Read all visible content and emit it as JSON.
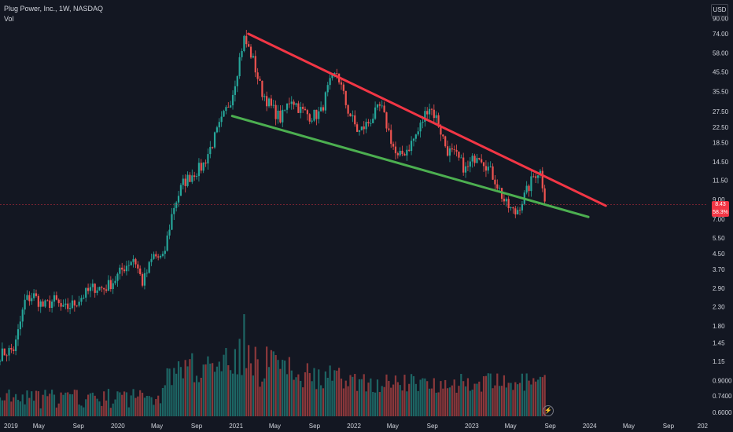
{
  "header": {
    "title": "Plug Power, Inc., 1W, NASDAQ",
    "indicator": "Vol"
  },
  "currency_button": "USD",
  "last_price": {
    "price": "8.43",
    "change": "58.3%"
  },
  "flash_icon": "lightning-bolt-icon",
  "colors": {
    "background": "#131722",
    "up": "#26a69a",
    "down": "#ef5350",
    "up_volume": "#26a69a",
    "down_volume": "#ef5350",
    "resistance_line": "#f23645",
    "support_line": "#4caf50",
    "axis_text": "#d1d4dc",
    "price_line": "#f23645",
    "grid": "#1e222d"
  },
  "chart_data": {
    "type": "candlestick",
    "title": "Plug Power, Inc., 1W, NASDAQ",
    "y_scale": "log",
    "y_ticks": [
      "90.00",
      "74.00",
      "58.00",
      "45.50",
      "35.50",
      "27.50",
      "22.50",
      "18.50",
      "14.50",
      "11.50",
      "9.00",
      "7.00",
      "5.50",
      "4.50",
      "3.70",
      "2.90",
      "2.30",
      "1.80",
      "1.45",
      "1.15",
      "0.9000",
      "0.7400",
      "0.6000"
    ],
    "x_ticks": [
      "2019",
      "May",
      "Sep",
      "2020",
      "May",
      "Sep",
      "2021",
      "May",
      "Sep",
      "2022",
      "May",
      "Sep",
      "2023",
      "May",
      "Sep",
      "2024",
      "May",
      "Sep",
      "202"
    ],
    "ylim": [
      0.57,
      95
    ],
    "xlim": [
      "2019-01-01",
      "2025-01-01"
    ],
    "grid": false,
    "series": [
      {
        "values": [
          {
            "x": "2019-01-01",
            "close": 1.25
          },
          {
            "x": "2019-02-15",
            "close": 1.35
          },
          {
            "x": "2019-03-20",
            "close": 2.5
          },
          {
            "x": "2019-04-15",
            "close": 2.65
          },
          {
            "x": "2019-05-15",
            "close": 2.3
          },
          {
            "x": "2019-06-20",
            "close": 2.5
          },
          {
            "x": "2019-07-15",
            "close": 2.2
          },
          {
            "x": "2019-08-20",
            "close": 2.4
          },
          {
            "x": "2019-09-15",
            "close": 2.65
          },
          {
            "x": "2019-10-20",
            "close": 2.95
          },
          {
            "x": "2019-11-20",
            "close": 2.9
          },
          {
            "x": "2019-12-20",
            "close": 3.2
          },
          {
            "x": "2020-01-20",
            "close": 3.8
          },
          {
            "x": "2020-02-20",
            "close": 4.3
          },
          {
            "x": "2020-03-18",
            "close": 3.1
          },
          {
            "x": "2020-04-20",
            "close": 4.4
          },
          {
            "x": "2020-05-20",
            "close": 4.2
          },
          {
            "x": "2020-06-20",
            "close": 8.0
          },
          {
            "x": "2020-07-20",
            "close": 11.0
          },
          {
            "x": "2020-08-20",
            "close": 12.5
          },
          {
            "x": "2020-09-20",
            "close": 13.8
          },
          {
            "x": "2020-10-20",
            "close": 18.5
          },
          {
            "x": "2020-11-20",
            "close": 25.0
          },
          {
            "x": "2020-12-20",
            "close": 34.0
          },
          {
            "x": "2021-01-25",
            "close": 70.0
          },
          {
            "x": "2021-02-20",
            "close": 55.0
          },
          {
            "x": "2021-03-20",
            "close": 36.0
          },
          {
            "x": "2021-04-20",
            "close": 29.0
          },
          {
            "x": "2021-05-20",
            "close": 25.0
          },
          {
            "x": "2021-06-20",
            "close": 33.0
          },
          {
            "x": "2021-07-20",
            "close": 28.0
          },
          {
            "x": "2021-08-20",
            "close": 26.0
          },
          {
            "x": "2021-09-20",
            "close": 27.0
          },
          {
            "x": "2021-10-15",
            "close": 38.0
          },
          {
            "x": "2021-11-10",
            "close": 45.5
          },
          {
            "x": "2021-12-10",
            "close": 29.0
          },
          {
            "x": "2022-01-15",
            "close": 21.0
          },
          {
            "x": "2022-02-15",
            "close": 24.0
          },
          {
            "x": "2022-03-25",
            "close": 29.5
          },
          {
            "x": "2022-04-20",
            "close": 21.0
          },
          {
            "x": "2022-05-15",
            "close": 15.0
          },
          {
            "x": "2022-06-20",
            "close": 17.5
          },
          {
            "x": "2022-07-20",
            "close": 21.5
          },
          {
            "x": "2022-08-20",
            "close": 30.0
          },
          {
            "x": "2022-09-15",
            "close": 25.0
          },
          {
            "x": "2022-10-15",
            "close": 17.0
          },
          {
            "x": "2022-11-15",
            "close": 15.5
          },
          {
            "x": "2022-12-15",
            "close": 13.0
          },
          {
            "x": "2023-01-20",
            "close": 16.5
          },
          {
            "x": "2023-02-15",
            "close": 14.0
          },
          {
            "x": "2023-03-15",
            "close": 11.5
          },
          {
            "x": "2023-04-15",
            "close": 8.5
          },
          {
            "x": "2023-05-15",
            "close": 7.5
          },
          {
            "x": "2023-06-15",
            "close": 9.5
          },
          {
            "x": "2023-07-15",
            "close": 12.5
          },
          {
            "x": "2023-07-31",
            "close": 13.0
          },
          {
            "x": "2023-08-20",
            "close": 8.43
          }
        ]
      }
    ],
    "trendlines": [
      {
        "name": "resistance",
        "start": {
          "x": "2021-02-08",
          "y": 74.0
        },
        "end": {
          "x": "2024-02-20",
          "y": 8.3
        }
      },
      {
        "name": "support",
        "start": {
          "x": "2020-12-20",
          "y": 26.0
        },
        "end": {
          "x": "2023-12-28",
          "y": 7.2
        }
      }
    ],
    "volume_panel": {
      "ylabel": "Vol",
      "peak_date": "2021-01-25",
      "annotation": ""
    }
  }
}
